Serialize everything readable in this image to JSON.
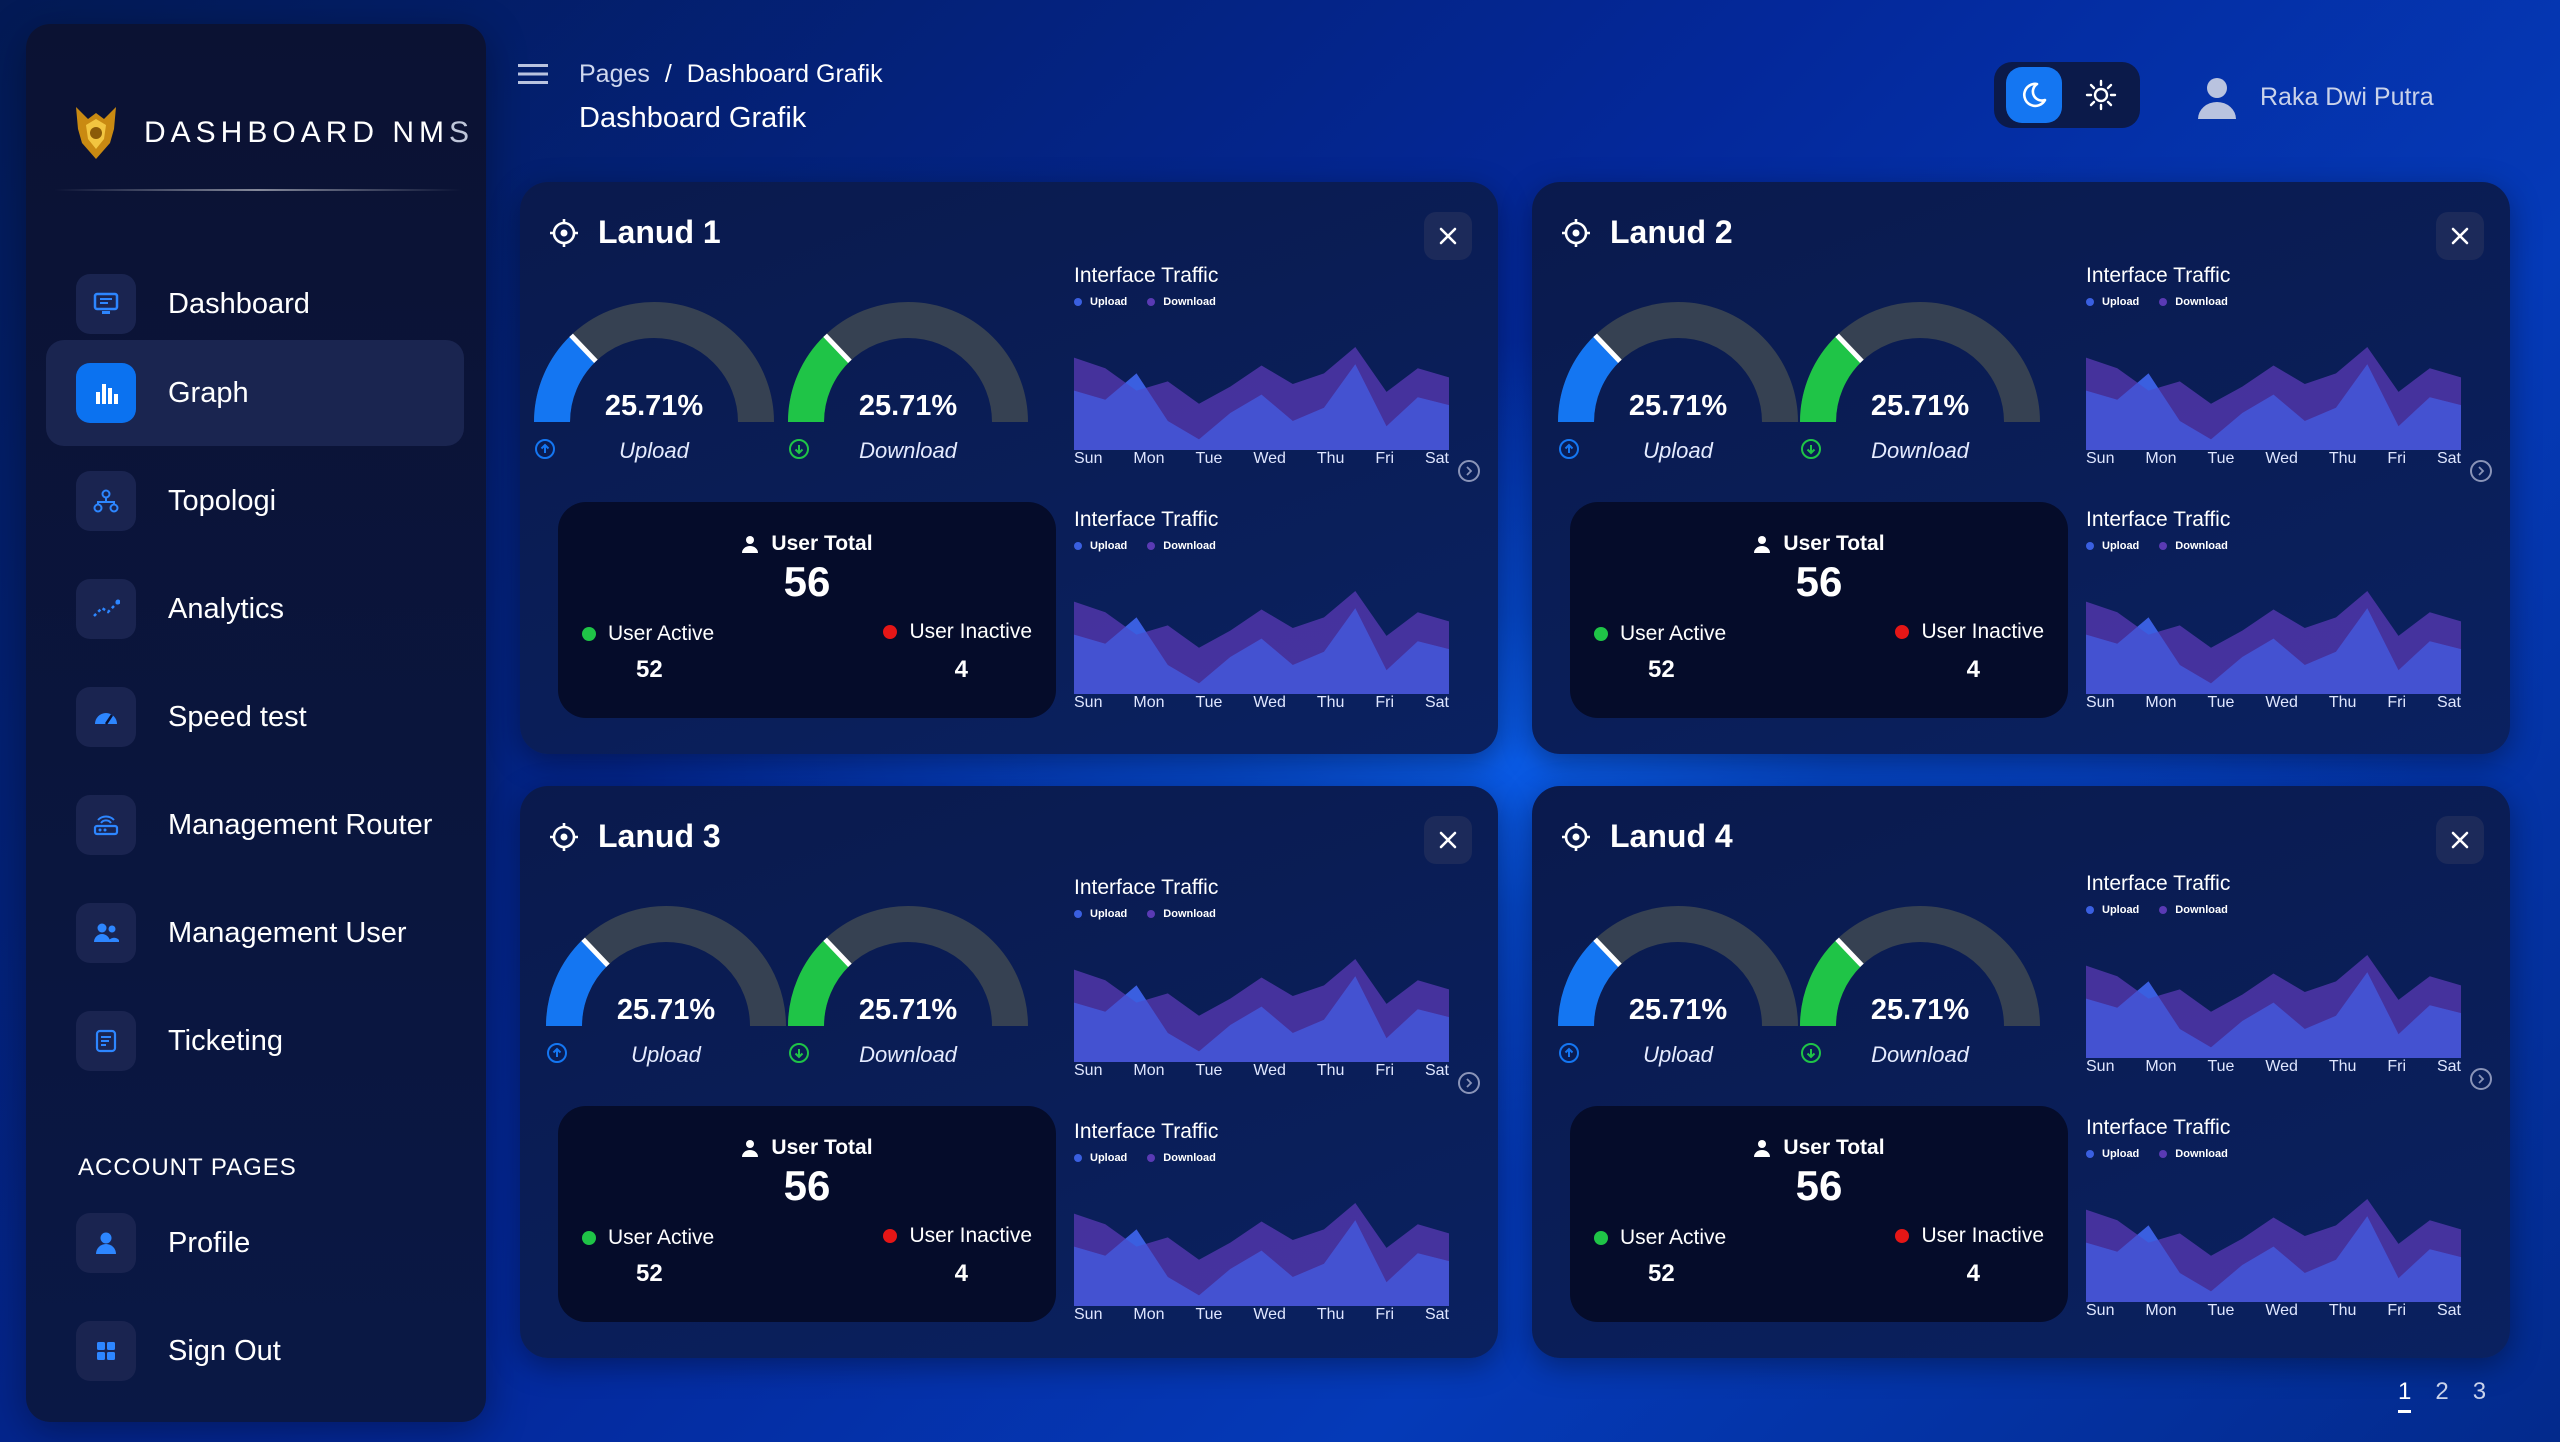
{
  "brand": {
    "title": "DASHBOARD NM",
    "title_tail": "S"
  },
  "sidebar": {
    "items": [
      {
        "label": "Dashboard"
      },
      {
        "label": "Graph"
      },
      {
        "label": "Topologi"
      },
      {
        "label": "Analytics"
      },
      {
        "label": "Speed test"
      },
      {
        "label": "Management Router"
      },
      {
        "label": "Management User"
      },
      {
        "label": "Ticketing"
      }
    ],
    "section_title": "ACCOUNT PAGES",
    "account_items": [
      {
        "label": "Profile"
      },
      {
        "label": "Sign Out"
      }
    ]
  },
  "header": {
    "breadcrumb_root": "Pages",
    "breadcrumb_sep": "/",
    "breadcrumb_current": "Dashboard Grafik",
    "page_title": "Dashboard Grafik",
    "user_name": "Raka Dwi Putra"
  },
  "cards": [
    {
      "title": "Lanud 1",
      "upload_pct": "25.71%",
      "download_pct": "25.71%",
      "upload_label": "Upload",
      "download_label": "Download",
      "user_total_label": "User Total",
      "user_total": "56",
      "user_active_label": "User Active",
      "user_active": "52",
      "user_inactive_label": "User Inactive",
      "user_inactive": "4"
    },
    {
      "title": "Lanud 2",
      "upload_pct": "25.71%",
      "download_pct": "25.71%",
      "upload_label": "Upload",
      "download_label": "Download",
      "user_total_label": "User Total",
      "user_total": "56",
      "user_active_label": "User Active",
      "user_active": "52",
      "user_inactive_label": "User Inactive",
      "user_inactive": "4"
    },
    {
      "title": "Lanud 3",
      "upload_pct": "25.71%",
      "download_pct": "25.71%",
      "upload_label": "Upload",
      "download_label": "Download",
      "user_total_label": "User Total",
      "user_total": "56",
      "user_active_label": "User Active",
      "user_active": "52",
      "user_inactive_label": "User Inactive",
      "user_inactive": "4"
    },
    {
      "title": "Lanud 4",
      "upload_pct": "25.71%",
      "download_pct": "25.71%",
      "upload_label": "Upload",
      "download_label": "Download",
      "user_total_label": "User Total",
      "user_total": "56",
      "user_active_label": "User Active",
      "user_active": "52",
      "user_inactive_label": "User Inactive",
      "user_inactive": "4"
    }
  ],
  "traffic": {
    "title": "Interface Traffic",
    "legend_upload": "Upload",
    "legend_download": "Download",
    "days": [
      "Sun",
      "Mon",
      "Tue",
      "Wed",
      "Thu",
      "Fri",
      "Sat"
    ]
  },
  "gauge_fraction": 0.2571,
  "colors": {
    "upload": "#1476f2",
    "download": "#1fc447",
    "gauge_track": "#364152",
    "active": "#1fc447",
    "inactive": "#e51616",
    "area_upload": "#3a5fe0",
    "area_download": "#5a3ab4"
  },
  "pager": {
    "pages": [
      "1",
      "2",
      "3"
    ],
    "current": "1"
  }
}
